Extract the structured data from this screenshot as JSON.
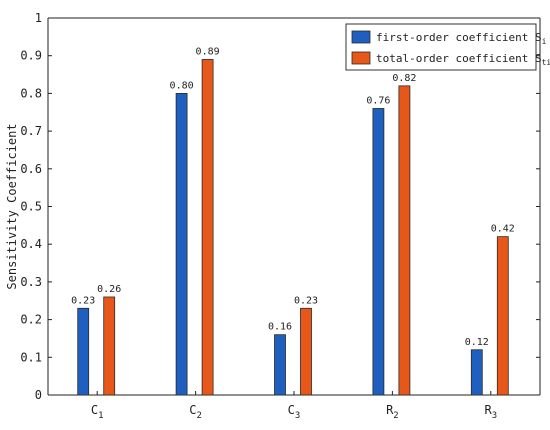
{
  "chart_data": {
    "type": "bar",
    "ylabel": "Sensitivity Coefficient",
    "ylim": [
      0,
      1
    ],
    "yticks": [
      "0",
      "0.1",
      "0.2",
      "0.3",
      "0.4",
      "0.5",
      "0.6",
      "0.7",
      "0.8",
      "0.9",
      "1"
    ],
    "categories": [
      {
        "base": "C",
        "sub": "1"
      },
      {
        "base": "C",
        "sub": "2"
      },
      {
        "base": "C",
        "sub": "3"
      },
      {
        "base": "R",
        "sub": "2"
      },
      {
        "base": "R",
        "sub": "3"
      }
    ],
    "series": [
      {
        "name": "first-order coefficient S",
        "name_sub": "i",
        "color": "#1f5fc0",
        "values": [
          0.23,
          0.8,
          0.16,
          0.76,
          0.12
        ],
        "labels": [
          "0.23",
          "0.80",
          "0.16",
          "0.76",
          "0.12"
        ]
      },
      {
        "name": "total-order coefficient S",
        "name_sub": "ti",
        "color": "#e8571a",
        "values": [
          0.26,
          0.89,
          0.23,
          0.82,
          0.42
        ],
        "labels": [
          "0.26",
          "0.89",
          "0.23",
          "0.82",
          "0.42"
        ]
      }
    ],
    "grid": false,
    "legend_position": "top-right"
  }
}
